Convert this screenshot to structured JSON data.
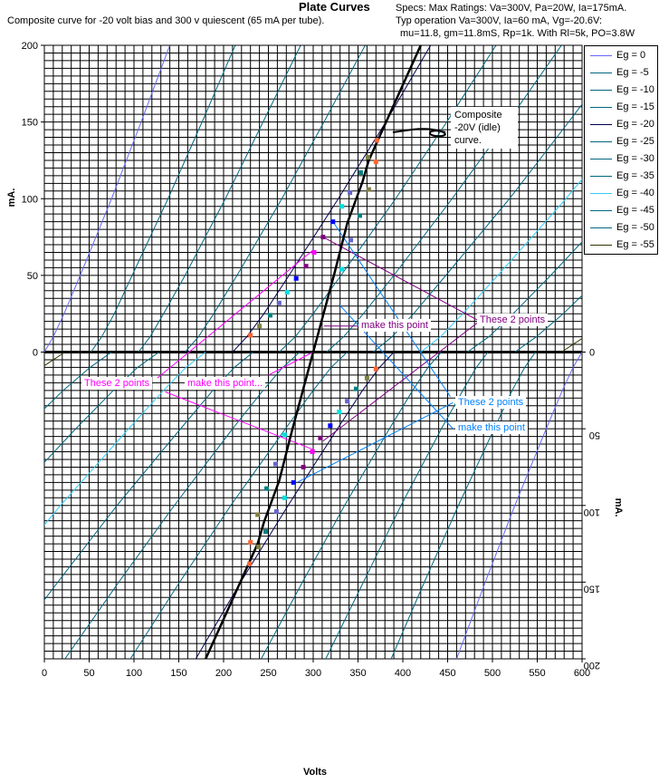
{
  "header": {
    "title": "Plate Curves",
    "subtitle": "Composite curve for -20 volt bias and 300 v quiescent (65 mA per tube).",
    "specs": [
      "Specs: Max Ratings: Va=300V, Pa=20W, Ia=175mA.",
      "Typ operation Va=300V, Ia=60 mA, Vg=-20.6V:",
      "mu=11.8, gm=11.8mS, Rp=1k. With Rl=5k, PO=3.8W"
    ]
  },
  "annotations_text": {
    "composite": "Composite -20V (idle) curve.",
    "purple_make": "make this point",
    "purple_these": "These 2 points",
    "magenta_these": "These 2 points",
    "magenta_make": "make this point...",
    "blue_these": "These 2 points",
    "blue_make": "make this point"
  },
  "chart_data": {
    "type": "line",
    "title": "Plate Curves",
    "xlabel": "Volts",
    "ylabel": "mA.",
    "ylabel_right": "mA.",
    "xlim": [
      0,
      600
    ],
    "ylim": [
      -200,
      200
    ],
    "x_ticks": [
      0,
      50,
      100,
      150,
      200,
      250,
      300,
      350,
      400,
      450,
      500,
      550,
      600
    ],
    "y_ticks_left": [
      0,
      50,
      100,
      150,
      200
    ],
    "y_ticks_right_inverted": [
      0,
      50,
      100,
      150,
      200
    ],
    "grid": true,
    "legend_position": "right",
    "currents_mA": [
      0,
      10,
      25,
      50,
      100,
      150,
      200
    ],
    "series": [
      {
        "name": "Eg = 0",
        "color": "#6666ff",
        "plate_volts": [
          0,
          10,
          22,
          40,
          75,
          108,
          140
        ]
      },
      {
        "name": "Eg = -5",
        "color": "#006680",
        "plate_volts": [
          52,
          64,
          78,
          98,
          138,
          176,
          213
        ]
      },
      {
        "name": "Eg = -10",
        "color": "#006680",
        "plate_volts": [
          105,
          118,
          133,
          157,
          202,
          244,
          286
        ]
      },
      {
        "name": "Eg = -15",
        "color": "#006680",
        "plate_volts": [
          157,
          172,
          189,
          215,
          265,
          312,
          358
        ]
      },
      {
        "name": "Eg = -20",
        "color": "#000050",
        "plate_volts": [
          210,
          226,
          245,
          273,
          328,
          381,
          431
        ]
      },
      {
        "name": "Eg = -25",
        "color": "#006680",
        "plate_volts": [
          262,
          280,
          300,
          331,
          392,
          449,
          504
        ]
      },
      {
        "name": "Eg = -30",
        "color": "#006680",
        "plate_volts": [
          315,
          334,
          356,
          390,
          455,
          517,
          577
        ]
      },
      {
        "name": "Eg = -35",
        "color": "#006680",
        "plate_volts": [
          367,
          388,
          412,
          448,
          519,
          585,
          650
        ]
      },
      {
        "name": "Eg = -40",
        "color": "#33ccff",
        "plate_volts": [
          420,
          442,
          467,
          506,
          582,
          653,
          722
        ]
      },
      {
        "name": "Eg = -45",
        "color": "#006680",
        "plate_volts": [
          472,
          496,
          523,
          565,
          645,
          721,
          795
        ]
      },
      {
        "name": "Eg = -50",
        "color": "#006680",
        "plate_volts": [
          525,
          549,
          579,
          623,
          709,
          790,
          868
        ]
      },
      {
        "name": "Eg = -55",
        "color": "#333300",
        "plate_volts": [
          577,
          603,
          635,
          681,
          772,
          858,
          941
        ]
      }
    ],
    "mirrored_about": [
      300,
      0
    ],
    "composite_curve": {
      "name": "Composite -20V",
      "color": "#000000",
      "points": [
        [
          180,
          -200
        ],
        [
          238,
          -125
        ],
        [
          245,
          -111
        ],
        [
          262,
          -84
        ],
        [
          276,
          -52
        ],
        [
          300,
          0
        ],
        [
          324,
          52
        ],
        [
          338,
          84
        ],
        [
          355,
          111
        ],
        [
          362,
          125
        ],
        [
          420,
          200
        ]
      ]
    },
    "markers": [
      [
        230,
        11,
        "#ff6633"
      ],
      [
        240,
        17,
        "#808040"
      ],
      [
        252,
        24,
        "#008080"
      ],
      [
        262,
        32,
        "#6666cc"
      ],
      [
        271,
        39,
        "#00e0e0"
      ],
      [
        281,
        48,
        "#0000ff"
      ],
      [
        292,
        56,
        "#800080"
      ],
      [
        301,
        65,
        "#ff00ff"
      ],
      [
        311,
        75,
        "#800080"
      ],
      [
        322,
        85,
        "#0000ff"
      ],
      [
        332,
        95,
        "#00e0e0"
      ],
      [
        341,
        104,
        "#6666cc"
      ],
      [
        353,
        117,
        "#008080"
      ],
      [
        361,
        127,
        "#808040"
      ],
      [
        371,
        138,
        "#ff6633"
      ],
      [
        370,
        -11,
        "#ff6633"
      ],
      [
        360,
        -17,
        "#808040"
      ],
      [
        348,
        -24,
        "#008080"
      ],
      [
        338,
        -32,
        "#6666cc"
      ],
      [
        329,
        -39,
        "#00e0e0"
      ],
      [
        319,
        -48,
        "#0000ff"
      ],
      [
        308,
        -56,
        "#800080"
      ],
      [
        299,
        -65,
        "#ff00ff"
      ],
      [
        289,
        -75,
        "#800080"
      ],
      [
        278,
        -85,
        "#0000ff"
      ],
      [
        268,
        -95,
        "#00e0e0"
      ],
      [
        259,
        -104,
        "#6666cc"
      ],
      [
        247,
        -117,
        "#008080"
      ],
      [
        239,
        -127,
        "#808040"
      ],
      [
        229,
        -138,
        "#ff6633"
      ],
      [
        332,
        54,
        "#00e0e0"
      ],
      [
        342,
        73,
        "#6666cc"
      ],
      [
        352,
        89,
        "#008080"
      ],
      [
        362,
        106,
        "#808040"
      ],
      [
        370,
        124,
        "#ff6633"
      ],
      [
        268,
        -54,
        "#00e0e0"
      ],
      [
        258,
        -73,
        "#6666cc"
      ],
      [
        248,
        -89,
        "#008080"
      ],
      [
        238,
        -106,
        "#808040"
      ],
      [
        230,
        -124,
        "#ff6633"
      ]
    ],
    "construction_lines": [
      {
        "color": "#ff00ff",
        "points": [
          [
            126,
            -17
          ],
          [
            299,
            66
          ]
        ]
      },
      {
        "color": "#ff00ff",
        "points": [
          [
            135,
            -26
          ],
          [
            302,
            -64
          ]
        ]
      },
      {
        "color": "#ff00ff",
        "points": [
          [
            250,
            -15
          ],
          [
            300,
            0
          ]
        ]
      },
      {
        "color": "#800080",
        "points": [
          [
            311,
            75
          ],
          [
            483,
            21
          ]
        ]
      },
      {
        "color": "#800080",
        "points": [
          [
            311,
            -58
          ],
          [
            483,
            19
          ]
        ]
      },
      {
        "color": "#800080",
        "points": [
          [
            352,
            17
          ],
          [
            312,
            17
          ]
        ]
      },
      {
        "color": "#0080ff",
        "points": [
          [
            322,
            85
          ],
          [
            453,
            -29
          ]
        ]
      },
      {
        "color": "#0080ff",
        "points": [
          [
            329,
            31
          ],
          [
            456,
            -50
          ]
        ]
      },
      {
        "color": "#0080ff",
        "points": [
          [
            282,
            -85
          ],
          [
            456,
            -33
          ]
        ]
      }
    ]
  }
}
